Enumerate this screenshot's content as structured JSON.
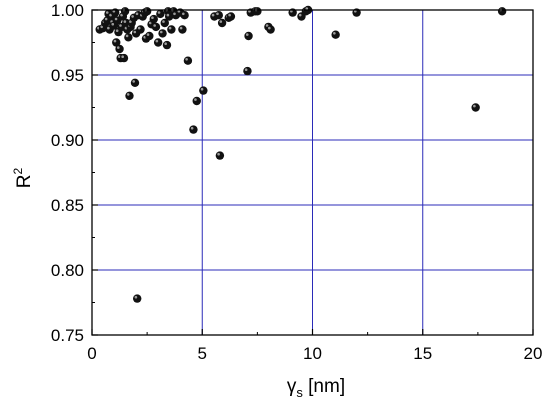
{
  "chart_data": {
    "type": "scatter",
    "xlabel": "γ",
    "xlabel_sub": "s",
    "xlabel_unit": " [nm]",
    "ylabel": "R",
    "ylabel_sup": "2",
    "xlim": [
      0,
      20
    ],
    "ylim": [
      0.75,
      1.0
    ],
    "x_ticks": [
      0,
      5,
      10,
      15,
      20
    ],
    "y_ticks": [
      0.75,
      0.8,
      0.85,
      0.9,
      0.95,
      1.0
    ],
    "x_tick_labels": [
      "0",
      "5",
      "10",
      "15",
      "20"
    ],
    "y_tick_labels": [
      "0.75",
      "0.80",
      "0.85",
      "0.90",
      "0.95",
      "1.00"
    ],
    "grid": true,
    "colors": {
      "grid": "#2b2bb8",
      "frame": "#000000",
      "marker": "#111111"
    },
    "points": [
      [
        0.35,
        0.985
      ],
      [
        0.5,
        0.986
      ],
      [
        0.6,
        0.99
      ],
      [
        0.7,
        0.992
      ],
      [
        0.75,
        0.997
      ],
      [
        0.8,
        0.985
      ],
      [
        0.9,
        0.995
      ],
      [
        0.95,
        0.99
      ],
      [
        1.0,
        0.988
      ],
      [
        1.05,
        0.998
      ],
      [
        1.1,
        0.975
      ],
      [
        1.15,
        0.992
      ],
      [
        1.2,
        0.983
      ],
      [
        1.25,
        0.97
      ],
      [
        1.3,
        0.963
      ],
      [
        1.35,
        0.987
      ],
      [
        1.4,
        0.995
      ],
      [
        1.45,
        0.963
      ],
      [
        1.5,
        0.999
      ],
      [
        1.55,
        0.99
      ],
      [
        1.6,
        0.985
      ],
      [
        1.65,
        0.979
      ],
      [
        1.7,
        0.934
      ],
      [
        1.75,
        0.987
      ],
      [
        1.8,
        0.99
      ],
      [
        1.9,
        0.994
      ],
      [
        1.95,
        0.944
      ],
      [
        2.0,
        0.982
      ],
      [
        2.05,
        0.778
      ],
      [
        2.1,
        0.996
      ],
      [
        2.2,
        0.985
      ],
      [
        2.3,
        0.995
      ],
      [
        2.4,
        0.998
      ],
      [
        2.45,
        0.978
      ],
      [
        2.5,
        0.999
      ],
      [
        2.6,
        0.98
      ],
      [
        2.7,
        0.989
      ],
      [
        2.8,
        0.993
      ],
      [
        2.9,
        0.987
      ],
      [
        3.0,
        0.975
      ],
      [
        3.1,
        0.997
      ],
      [
        3.2,
        0.982
      ],
      [
        3.3,
        0.99
      ],
      [
        3.4,
        0.973
      ],
      [
        3.45,
        0.999
      ],
      [
        3.5,
        0.995
      ],
      [
        3.6,
        0.985
      ],
      [
        3.7,
        0.999
      ],
      [
        3.8,
        0.996
      ],
      [
        4.0,
        0.998
      ],
      [
        4.1,
        0.985
      ],
      [
        4.2,
        0.996
      ],
      [
        4.35,
        0.961
      ],
      [
        4.6,
        0.908
      ],
      [
        4.75,
        0.93
      ],
      [
        5.05,
        0.938
      ],
      [
        5.55,
        0.995
      ],
      [
        5.75,
        0.996
      ],
      [
        5.8,
        0.888
      ],
      [
        5.9,
        0.99
      ],
      [
        6.2,
        0.994
      ],
      [
        6.3,
        0.995
      ],
      [
        7.05,
        0.953
      ],
      [
        7.1,
        0.98
      ],
      [
        7.2,
        0.998
      ],
      [
        7.4,
        0.999
      ],
      [
        7.5,
        0.999
      ],
      [
        8.0,
        0.987
      ],
      [
        8.1,
        0.985
      ],
      [
        9.1,
        0.998
      ],
      [
        9.5,
        0.995
      ],
      [
        9.7,
        0.999
      ],
      [
        9.8,
        1.0
      ],
      [
        11.05,
        0.981
      ],
      [
        12.0,
        0.998
      ],
      [
        17.4,
        0.925
      ],
      [
        18.6,
        0.999
      ]
    ]
  }
}
